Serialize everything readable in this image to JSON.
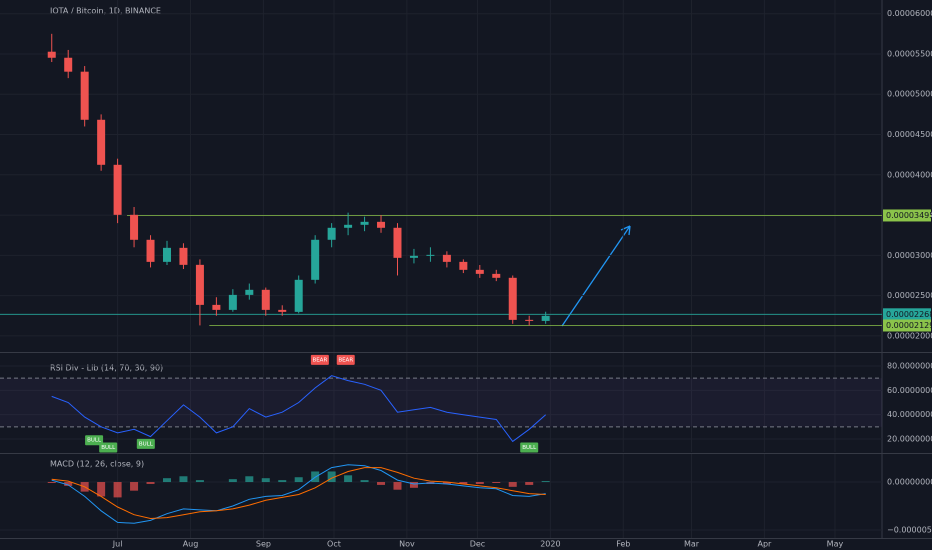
{
  "chart_data": [
    {
      "type": "candlestick",
      "title": "IOTA / Bitcoin, 1D, BINANCE",
      "up_color": "#26a69a",
      "down_color": "#ef5350",
      "x": [
        -28,
        -21,
        -14,
        -7,
        0,
        7,
        14,
        21,
        28,
        35,
        42,
        49,
        56,
        63,
        70,
        77,
        84,
        91,
        98,
        105,
        112,
        119,
        126,
        133,
        140,
        147,
        154,
        161,
        168,
        175,
        182
      ],
      "open": [
        5.528e-05,
        5.453e-05,
        5.28e-05,
        4.683e-05,
        4.124e-05,
        3.503e-05,
        3.193e-05,
        2.919e-05,
        3.093e-05,
        2.882e-05,
        2.385e-05,
        2.323e-05,
        2.509e-05,
        2.572e-05,
        2.323e-05,
        2.298e-05,
        2.696e-05,
        3.193e-05,
        3.342e-05,
        3.379e-05,
        3.416e-05,
        3.342e-05,
        2.969e-05,
        2.994e-05,
        3.006e-05,
        2.919e-05,
        2.82e-05,
        2.77e-05,
        2.721e-05,
        2.199e-05,
        2.186e-05
      ],
      "high": [
        5.75e-05,
        5.55e-05,
        5.35e-05,
        4.75e-05,
        4.2e-05,
        3.6e-05,
        3.25e-05,
        3.18e-05,
        3.15e-05,
        2.95e-05,
        2.48e-05,
        2.58e-05,
        2.65e-05,
        2.6e-05,
        2.38e-05,
        2.75e-05,
        3.25e-05,
        3.4e-05,
        3.53e-05,
        3.48e-05,
        3.5e-05,
        3.4e-05,
        3.08e-05,
        3.1e-05,
        3.05e-05,
        2.95e-05,
        2.88e-05,
        2.82e-05,
        2.75e-05,
        2.25e-05,
        2.3e-05
      ],
      "low": [
        5.4e-05,
        5.2e-05,
        4.6e-05,
        4.05e-05,
        3.4e-05,
        3.1e-05,
        2.85e-05,
        2.88e-05,
        2.83e-05,
        2.13e-05,
        2.25e-05,
        2.3e-05,
        2.45e-05,
        2.25e-05,
        2.25e-05,
        2.28e-05,
        2.65e-05,
        3.1e-05,
        3.25e-05,
        3.3e-05,
        3.28e-05,
        2.75e-05,
        2.9e-05,
        2.92e-05,
        2.85e-05,
        2.78e-05,
        2.72e-05,
        2.68e-05,
        2.15e-05,
        2.129e-05,
        2.15e-05
      ],
      "close": [
        5.453e-05,
        5.28e-05,
        4.683e-05,
        4.124e-05,
        3.503e-05,
        3.193e-05,
        2.919e-05,
        3.093e-05,
        2.882e-05,
        2.385e-05,
        2.323e-05,
        2.509e-05,
        2.572e-05,
        2.323e-05,
        2.298e-05,
        2.696e-05,
        3.193e-05,
        3.342e-05,
        3.379e-05,
        3.416e-05,
        3.342e-05,
        2.969e-05,
        2.994e-05,
        3.006e-05,
        2.919e-05,
        2.82e-05,
        2.77e-05,
        2.721e-05,
        2.199e-05,
        2.186e-05,
        2.249e-05
      ],
      "xlim": [
        -50,
        325
      ],
      "xticks": [
        {
          "value": 0,
          "label": "Jul"
        },
        {
          "value": 31,
          "label": "Aug"
        },
        {
          "value": 62,
          "label": "Sep"
        },
        {
          "value": 92,
          "label": "Oct"
        },
        {
          "value": 123,
          "label": "Nov"
        },
        {
          "value": 153,
          "label": "Dec"
        },
        {
          "value": 184,
          "label": "2020"
        },
        {
          "value": 215,
          "label": "Feb"
        },
        {
          "value": 244,
          "label": "Mar"
        },
        {
          "value": 275,
          "label": "Apr"
        },
        {
          "value": 305,
          "label": "May"
        }
      ],
      "ylim": [
        1.8e-05,
        6.17e-05
      ],
      "yticks": [
        {
          "value": 6e-05,
          "label": "0.00006000"
        },
        {
          "value": 5.5e-05,
          "label": "0.00005500"
        },
        {
          "value": 5e-05,
          "label": "0.00005000"
        },
        {
          "value": 4.5e-05,
          "label": "0.00004500"
        },
        {
          "value": 4e-05,
          "label": "0.00004000"
        },
        {
          "value": 3.5e-05,
          "label": "0.00003500"
        },
        {
          "value": 3e-05,
          "label": "0.00003000"
        },
        {
          "value": 2.5e-05,
          "label": "0.00002500"
        },
        {
          "value": 2e-05,
          "label": "0.00002000"
        }
      ],
      "levels": [
        {
          "value": 3.495e-05,
          "label": "0.00003495",
          "color": "#8bc34a",
          "x_from": 4
        },
        {
          "value": 2.268e-05,
          "label": "0.00002268",
          "color": "#26a69a",
          "x_from": -50
        },
        {
          "value": 2.129e-05,
          "label": "0.00002129",
          "color": "#8bc34a",
          "x_from": 39
        }
      ],
      "grid": true
    },
    {
      "type": "line",
      "title": "RSI Div - Lib (14, 70, 30, 90)",
      "color": "#2962ff",
      "band_color": "#7e57c2",
      "x": [
        -28,
        -21,
        -14,
        -7,
        0,
        7,
        14,
        21,
        28,
        35,
        42,
        49,
        56,
        63,
        70,
        77,
        84,
        91,
        98,
        105,
        112,
        119,
        126,
        133,
        140,
        147,
        154,
        161,
        168,
        175,
        182
      ],
      "values": [
        55,
        50,
        38,
        30,
        25,
        28,
        22,
        35,
        48,
        38,
        25,
        30,
        45,
        38,
        42,
        50,
        62,
        72,
        68,
        65,
        60,
        42,
        44,
        46,
        42,
        40,
        38,
        36,
        18,
        28,
        40
      ],
      "ylim": [
        9.3,
        90.7
      ],
      "yticks": [
        {
          "value": 80,
          "label": "80.00000000"
        },
        {
          "value": 60,
          "label": "60.00000000"
        },
        {
          "value": 40,
          "label": "40.00000000"
        },
        {
          "value": 20,
          "label": "20.00000000"
        }
      ],
      "levels": [
        70,
        30
      ],
      "signals": [
        {
          "label": "BULL",
          "x": -10,
          "y": 19,
          "color": "#4caf50"
        },
        {
          "label": "BULL",
          "x": -4,
          "y": 13,
          "color": "#4caf50"
        },
        {
          "label": "BULL",
          "x": 12,
          "y": 16,
          "color": "#4caf50"
        },
        {
          "label": "BULL",
          "x": 175,
          "y": 13,
          "color": "#4caf50"
        },
        {
          "label": "BEAR",
          "x": 86,
          "y": 85,
          "color": "#ef5350"
        },
        {
          "label": "BEAR",
          "x": 97,
          "y": 85,
          "color": "#ef5350"
        }
      ]
    },
    {
      "type": "macd",
      "title": "MACD (12, 26, close, 9)",
      "x": [
        -28,
        -21,
        -14,
        -7,
        0,
        7,
        14,
        21,
        28,
        35,
        42,
        49,
        56,
        63,
        70,
        77,
        84,
        91,
        98,
        105,
        112,
        119,
        126,
        133,
        140,
        147,
        154,
        161,
        168,
        175,
        182
      ],
      "histogram": {
        "up_color": "#26a69a",
        "down_color": "#ef5350",
        "values": [
          -1e-07,
          -4e-07,
          -1e-06,
          -1.5e-06,
          -1.6e-06,
          -9e-07,
          -2e-07,
          4e-07,
          6e-07,
          2e-07,
          0,
          3e-07,
          6e-07,
          4e-07,
          2e-07,
          5e-07,
          1.1e-06,
          1.1e-06,
          7e-07,
          2e-07,
          -3e-07,
          -8e-07,
          -6e-07,
          -2e-07,
          -2e-07,
          -2e-07,
          -2e-07,
          -1e-07,
          -5e-07,
          -3e-07,
          1e-07
        ]
      },
      "series": [
        {
          "color": "#2196f3",
          "values": [
            2e-07,
            -3e-07,
            -1.5e-06,
            -3e-06,
            -4.2e-06,
            -4.3e-06,
            -4e-06,
            -3.3e-06,
            -2.8e-06,
            -2.9e-06,
            -3e-06,
            -2.5e-06,
            -1.8e-06,
            -1.5e-06,
            -1.4e-06,
            -8e-07,
            5e-07,
            1.5e-06,
            1.8e-06,
            1.7e-06,
            1.2e-06,
            2e-07,
            -2e-07,
            -1e-07,
            -2e-07,
            -4e-07,
            -6e-07,
            -7e-07,
            -1.4e-06,
            -1.5e-06,
            -1.2e-06
          ]
        },
        {
          "color": "#ff6d00",
          "values": [
            3e-07,
            1e-07,
            -5e-07,
            -1.5e-06,
            -2.6e-06,
            -3.4e-06,
            -3.8e-06,
            -3.7e-06,
            -3.4e-06,
            -3.1e-06,
            -3e-06,
            -2.8e-06,
            -2.4e-06,
            -1.9e-06,
            -1.6e-06,
            -1.3e-06,
            -6e-07,
            4e-07,
            1.1e-06,
            1.5e-06,
            1.5e-06,
            1e-06,
            4e-07,
            1e-07,
            0,
            -2e-07,
            -4e-07,
            -6e-07,
            -9e-07,
            -1.2e-06,
            -1.3e-06
          ]
        }
      ],
      "ylim": [
        -5.83e-06,
        2.92e-06
      ],
      "yticks": [
        {
          "value": 0,
          "label": "0.00000000"
        },
        {
          "value": -5e-06,
          "label": "−0.00000500"
        }
      ]
    }
  ]
}
